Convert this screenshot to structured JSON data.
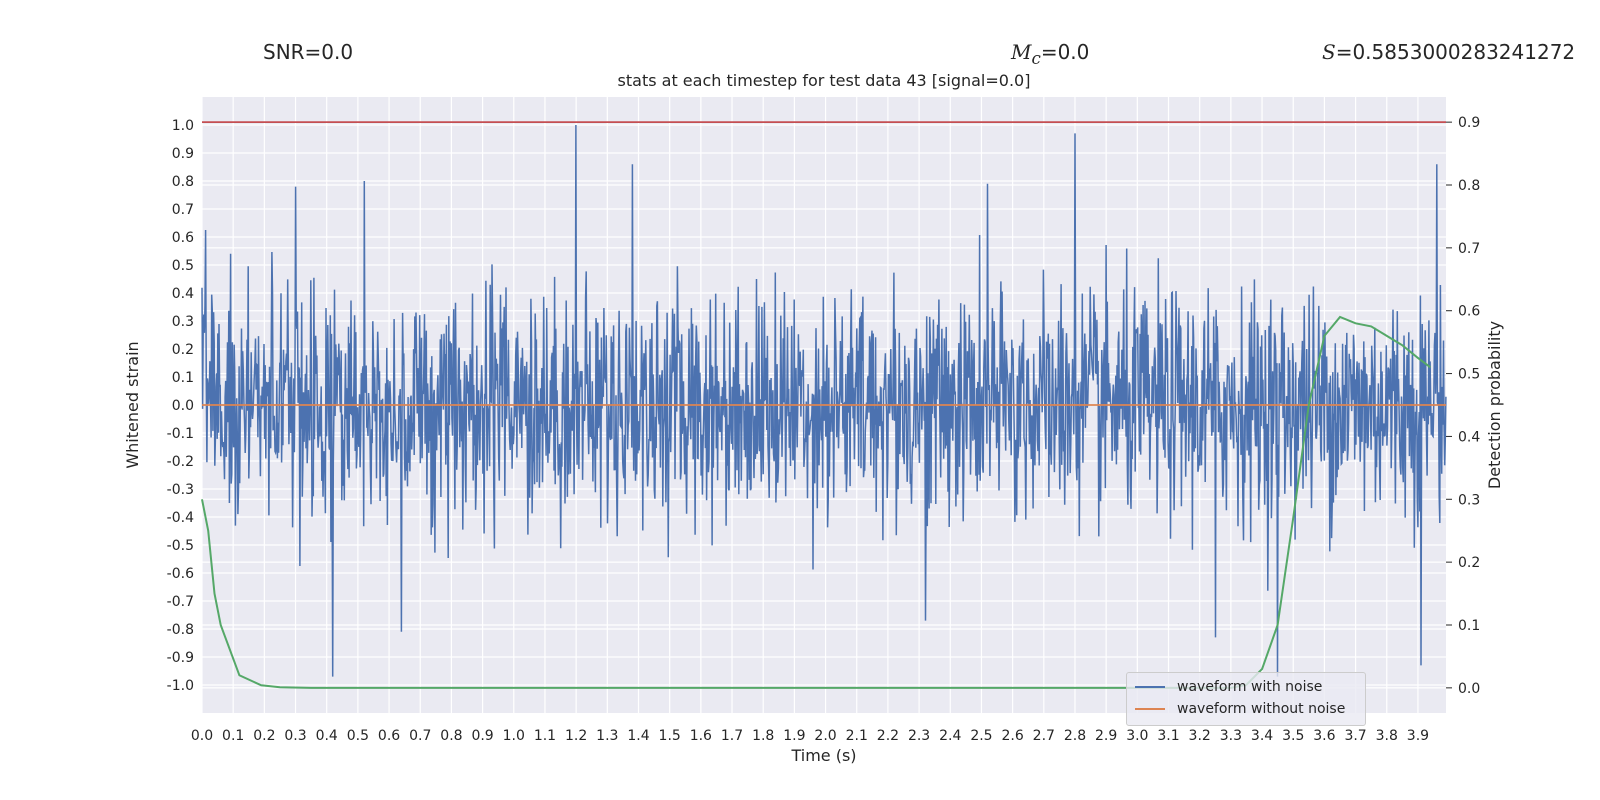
{
  "header": {
    "snr_text": "SNR=0.0",
    "mc_symbol": "M",
    "mc_subscript": "c",
    "mc_value": "=0.0",
    "s_symbol": "S",
    "s_value": "=0.5853000283241272"
  },
  "chart_data": {
    "type": "line",
    "title": "stats at each timestep for test data 43 [signal=0.0]",
    "xlabel": "Time (s)",
    "ylabel": "Whitened strain",
    "y2label": "Detection probability",
    "xlim": [
      0.0,
      3.99
    ],
    "ylim": [
      -1.1,
      1.1
    ],
    "y2lim": [
      -0.04,
      0.94
    ],
    "grid": true,
    "legend_position": "bottom-right",
    "x_ticks": [
      "0.0",
      "0.1",
      "0.2",
      "0.3",
      "0.4",
      "0.5",
      "0.6",
      "0.7",
      "0.8",
      "0.9",
      "1.0",
      "1.1",
      "1.2",
      "1.3",
      "1.4",
      "1.5",
      "1.6",
      "1.7",
      "1.8",
      "1.9",
      "2.0",
      "2.1",
      "2.2",
      "2.3",
      "2.4",
      "2.5",
      "2.6",
      "2.7",
      "2.8",
      "2.9",
      "3.0",
      "3.1",
      "3.2",
      "3.3",
      "3.4",
      "3.5",
      "3.6",
      "3.7",
      "3.8",
      "3.9"
    ],
    "y_ticks": [
      "1.0",
      "0.9",
      "0.8",
      "0.7",
      "0.6",
      "0.5",
      "0.4",
      "0.3",
      "0.2",
      "0.1",
      "0.0",
      "-0.1",
      "-0.2",
      "-0.3",
      "-0.4",
      "-0.5",
      "-0.6",
      "-0.7",
      "-0.8",
      "-0.9",
      "-1.0"
    ],
    "y2_ticks": [
      "0.9",
      "0.8",
      "0.7",
      "0.6",
      "0.5",
      "0.4",
      "0.3",
      "0.2",
      "0.1",
      "0.0"
    ],
    "threshold": {
      "value": 0.9,
      "axis": "right",
      "color": "#c44e52"
    },
    "series": [
      {
        "name": "waveform with noise",
        "axis": "left",
        "color": "#4c72b0",
        "sample_interval_s": 0.00195,
        "amplitude_range": [
          -0.97,
          1.0
        ],
        "notable_peaks": [
          [
            0.3,
            0.78
          ],
          [
            0.52,
            0.8
          ],
          [
            1.2,
            1.0
          ],
          [
            1.38,
            0.86
          ],
          [
            2.52,
            0.79
          ],
          [
            2.8,
            0.97
          ],
          [
            3.96,
            0.86
          ]
        ],
        "notable_troughs": [
          [
            0.42,
            -0.97
          ],
          [
            0.64,
            -0.81
          ],
          [
            2.32,
            -0.77
          ],
          [
            3.25,
            -0.83
          ],
          [
            3.45,
            -0.97
          ],
          [
            3.91,
            -0.93
          ]
        ]
      },
      {
        "name": "waveform without noise",
        "axis": "left",
        "color": "#dd8452",
        "x": [
          0.0,
          3.99
        ],
        "y": [
          0.0,
          0.0
        ]
      },
      {
        "name": "",
        "axis": "right",
        "color": "#55a868",
        "x": [
          0.0,
          0.02,
          0.04,
          0.06,
          0.12,
          0.19,
          0.25,
          0.35,
          0.5,
          1.0,
          2.0,
          3.0,
          3.3,
          3.35,
          3.4,
          3.45,
          3.5,
          3.55,
          3.6,
          3.65,
          3.7,
          3.75,
          3.8,
          3.85,
          3.9,
          3.94
        ],
        "y": [
          0.3,
          0.25,
          0.15,
          0.1,
          0.02,
          0.004,
          0.001,
          0.0,
          0.0,
          0.0,
          0.0,
          0.0,
          0.0,
          0.005,
          0.03,
          0.1,
          0.27,
          0.45,
          0.56,
          0.59,
          0.58,
          0.575,
          0.56,
          0.545,
          0.525,
          0.51
        ]
      }
    ]
  }
}
